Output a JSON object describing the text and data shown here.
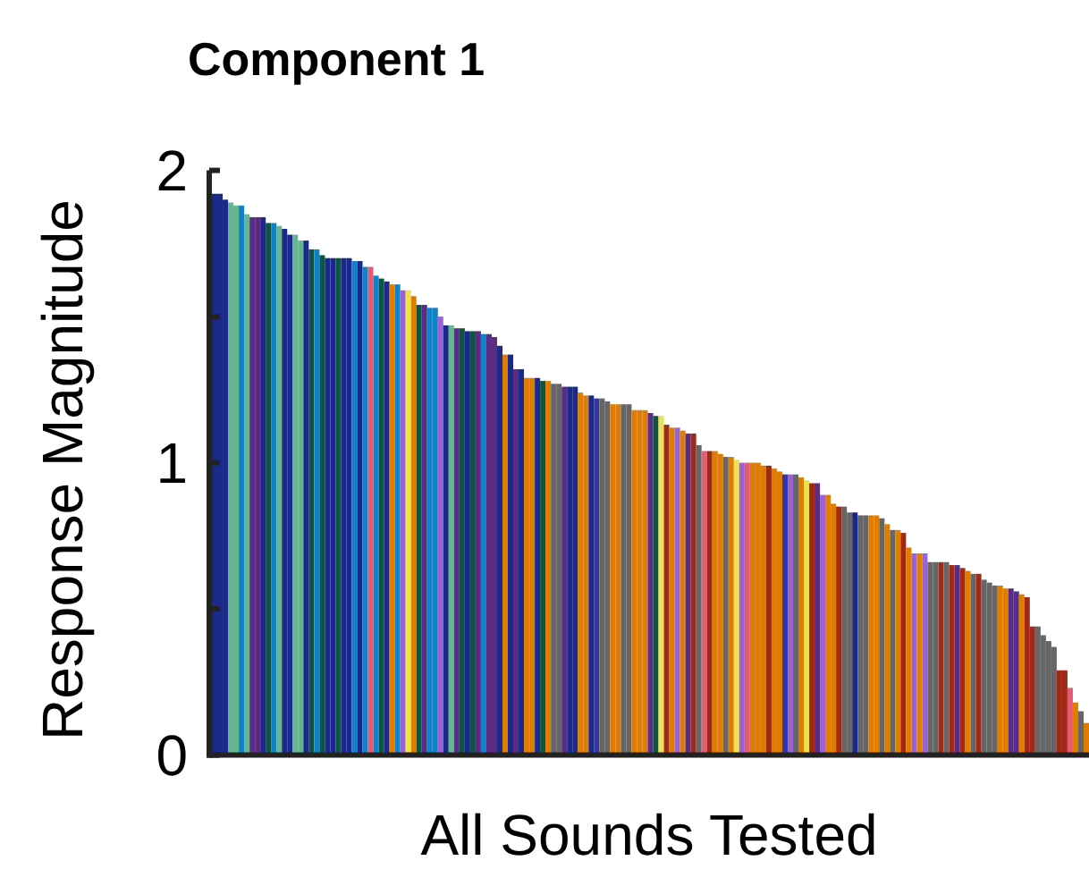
{
  "chart_data": {
    "type": "bar",
    "title": "Component 1",
    "xlabel": "All Sounds Tested",
    "ylabel": "Response Magnitude",
    "categories": [
      null,
      null,
      null,
      null,
      null,
      null,
      null,
      null,
      null,
      null,
      null,
      null,
      null,
      null,
      null,
      null,
      null,
      null,
      null,
      null,
      null,
      null,
      null,
      null,
      null,
      null,
      null,
      null,
      null,
      null,
      null,
      null,
      null,
      null,
      null,
      null,
      null,
      null,
      null,
      null,
      null,
      null,
      null,
      null,
      null,
      null,
      null,
      null,
      null,
      null,
      null,
      null,
      null,
      null,
      null,
      null,
      null,
      null,
      null,
      null,
      null,
      null,
      null,
      null,
      null,
      null,
      null,
      null,
      null,
      null,
      null,
      null,
      null,
      null,
      null,
      null,
      null,
      null,
      null,
      null,
      null,
      null,
      null,
      null,
      null,
      null,
      null,
      null,
      null,
      null,
      null,
      null,
      null,
      null,
      null,
      null,
      null,
      null,
      null,
      null,
      null,
      null,
      null,
      null,
      null,
      null,
      null,
      null,
      null,
      null,
      null,
      null,
      null,
      null,
      null,
      null,
      null,
      null,
      null,
      null,
      null,
      null,
      null,
      null,
      null,
      null,
      null,
      null,
      null,
      null,
      null,
      null,
      null,
      null,
      null,
      null,
      null,
      null,
      null,
      null,
      null,
      null,
      null,
      null,
      null,
      null,
      null,
      null,
      null,
      null,
      null,
      null,
      null,
      null,
      null,
      null,
      null,
      null,
      null,
      null,
      null,
      null,
      null
    ],
    "values": [
      1.92,
      1.92,
      1.9,
      1.89,
      1.88,
      1.88,
      1.85,
      1.84,
      1.84,
      1.84,
      1.82,
      1.82,
      1.81,
      1.8,
      1.78,
      1.78,
      1.76,
      1.76,
      1.73,
      1.73,
      1.71,
      1.7,
      1.7,
      1.7,
      1.7,
      1.7,
      1.69,
      1.69,
      1.67,
      1.67,
      1.64,
      1.63,
      1.62,
      1.61,
      1.61,
      1.59,
      1.59,
      1.57,
      1.54,
      1.54,
      1.53,
      1.53,
      1.5,
      1.47,
      1.47,
      1.46,
      1.46,
      1.45,
      1.45,
      1.45,
      1.44,
      1.44,
      1.43,
      1.4,
      1.37,
      1.37,
      1.32,
      1.32,
      1.29,
      1.29,
      1.29,
      1.28,
      1.28,
      1.27,
      1.27,
      1.26,
      1.26,
      1.26,
      1.24,
      1.23,
      1.23,
      1.22,
      1.22,
      1.21,
      1.2,
      1.2,
      1.2,
      1.2,
      1.18,
      1.18,
      1.18,
      1.17,
      1.16,
      1.16,
      1.13,
      1.12,
      1.12,
      1.11,
      1.1,
      1.1,
      1.06,
      1.04,
      1.04,
      1.04,
      1.03,
      1.02,
      1.02,
      1.01,
      1.0,
      1.0,
      1.0,
      1.0,
      0.99,
      0.99,
      0.98,
      0.97,
      0.96,
      0.96,
      0.96,
      0.95,
      0.94,
      0.93,
      0.93,
      0.89,
      0.89,
      0.86,
      0.85,
      0.85,
      0.83,
      0.83,
      0.82,
      0.82,
      0.82,
      0.82,
      0.81,
      0.79,
      0.77,
      0.77,
      0.76,
      0.71,
      0.69,
      0.69,
      0.69,
      0.66,
      0.66,
      0.66,
      0.66,
      0.65,
      0.65,
      0.64,
      0.63,
      0.62,
      0.62,
      0.6,
      0.59,
      0.58,
      0.58,
      0.57,
      0.57,
      0.56,
      0.55,
      0.54,
      0.44,
      0.44,
      0.41,
      0.39,
      0.37,
      0.29,
      0.29,
      0.23,
      0.18,
      0.15,
      0.11
    ],
    "colors": [
      "#1b2a8a",
      "#1b2a8a",
      "#1b2a8a",
      "#67b491",
      "#67b491",
      "#1182c5",
      "#67b491",
      "#5b2c83",
      "#5b2c83",
      "#1b2a8a",
      "#0f5443",
      "#1182c5",
      "#67b491",
      "#1b2a8a",
      "#1b2a8a",
      "#67b491",
      "#67b491",
      "#1b2a8a",
      "#0f5443",
      "#1182c5",
      "#0f5443",
      "#1b2a8a",
      "#1b2a8a",
      "#0f5443",
      "#1b2a8a",
      "#1b2a8a",
      "#1182c5",
      "#1b2a8a",
      "#1182c5",
      "#e35c73",
      "#1182c5",
      "#0f5443",
      "#1b2a8a",
      "#e07c00",
      "#1182c5",
      "#9a63d1",
      "#ece14e",
      "#e07c00",
      "#0f5443",
      "#5b2c83",
      "#1182c5",
      "#1182c5",
      "#9a63d1",
      "#1b2a8a",
      "#67b491",
      "#5b2c83",
      "#0f5443",
      "#1b2a8a",
      "#0f5443",
      "#5b2c83",
      "#1182c5",
      "#5b2c83",
      "#5b2c83",
      "#1b2a8a",
      "#e07c00",
      "#1b2a8a",
      "#5b2c83",
      "#1b2a8a",
      "#e07c00",
      "#e07c00",
      "#1b2a8a",
      "#0f5443",
      "#e07c00",
      "#666666",
      "#666666",
      "#5b2c83",
      "#1b2a8a",
      "#1b2a8a",
      "#e07c00",
      "#e07c00",
      "#1b2a8a",
      "#3535a5",
      "#666666",
      "#666666",
      "#e07c00",
      "#e07c00",
      "#666666",
      "#666666",
      "#e07c00",
      "#e07c00",
      "#e07c00",
      "#5b2c83",
      "#0f5443",
      "#ece14e",
      "#a12a14",
      "#e07c00",
      "#9a63d1",
      "#e07c00",
      "#5b2c83",
      "#a12a14",
      "#666666",
      "#e35c73",
      "#a12a14",
      "#e07c00",
      "#e07c00",
      "#666666",
      "#e07c00",
      "#ece14e",
      "#9a63d1",
      "#e35c73",
      "#e07c00",
      "#e07c00",
      "#e07c00",
      "#a12a14",
      "#e07c00",
      "#e07c00",
      "#3535a5",
      "#9a63d1",
      "#666666",
      "#e07c00",
      "#ece14e",
      "#a12a14",
      "#5b2c83",
      "#9a63d1",
      "#e07c00",
      "#e07c00",
      "#a12a14",
      "#666666",
      "#666666",
      "#1b2a8a",
      "#666666",
      "#666666",
      "#e07c00",
      "#e07c00",
      "#666666",
      "#e07c00",
      "#666666",
      "#e07c00",
      "#a12a14",
      "#e07c00",
      "#9a63d1",
      "#e07c00",
      "#9a63d1",
      "#666666",
      "#666666",
      "#a12a14",
      "#666666",
      "#a12a14",
      "#5b2c83",
      "#a12a14",
      "#e07c00",
      "#666666",
      "#a12a14",
      "#666666",
      "#666666",
      "#666666",
      "#e07c00",
      "#e07c00",
      "#5b2c83",
      "#5b2c83",
      "#e07c00",
      "#a12a14",
      "#a12a14",
      "#666666",
      "#666666",
      "#666666",
      "#666666",
      "#a12a14",
      "#a12a14",
      "#e35c73",
      "#e07c00",
      "#666666",
      "#e07c00"
    ],
    "ylim": [
      0,
      2
    ],
    "yticks": [
      0,
      {
        "value": 0.5,
        "label": null
      },
      1,
      {
        "value": 1.5,
        "label": null
      },
      2
    ]
  }
}
